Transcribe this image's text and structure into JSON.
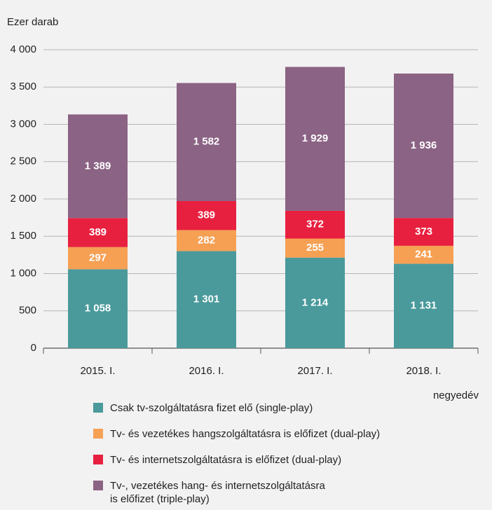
{
  "chart_data": {
    "type": "stacked_bar",
    "y_label": "Ezer darab",
    "x_label": "negyedév",
    "categories": [
      "2015. I.",
      "2016. I.",
      "2017. I.",
      "2018. I."
    ],
    "series": [
      {
        "name": "Csak tv-szolgáltatásra fizet elő (single-play)",
        "color": "#4a9a9c",
        "values": [
          1058,
          1301,
          1214,
          1131
        ],
        "value_labels": [
          "1 058",
          "1 301",
          "1 214",
          "1 131"
        ]
      },
      {
        "name": "Tv- és vezetékes hangszolgáltatásra is előfizet (dual-play)",
        "color": "#f6a054",
        "values": [
          297,
          282,
          255,
          241
        ]
      },
      {
        "name": "Tv- és internetszolgáltatásra is előfizet (dual-play)",
        "color": "#e8203f",
        "values": [
          389,
          389,
          372,
          373
        ]
      },
      {
        "name": "Tv-, vezetékes hang- és internetszolgáltatásra\nis előfizet (triple-play)",
        "color": "#8b6384",
        "values": [
          1389,
          1582,
          1929,
          1936
        ],
        "value_labels": [
          "1 389",
          "1 582",
          "1 929",
          "1 936"
        ]
      }
    ],
    "ylim": [
      0,
      4000
    ],
    "yticks": [
      0,
      500,
      {
        "value": 1000,
        "label": "1 000"
      },
      {
        "value": 1500,
        "label": "1 500"
      },
      {
        "value": 2000,
        "label": "2 000"
      },
      {
        "value": 2500,
        "label": "2 500"
      },
      {
        "value": 3000,
        "label": "3 000"
      },
      {
        "value": 3500,
        "label": "3 500"
      },
      {
        "value": 4000,
        "label": "4 000"
      }
    ],
    "grid": true
  }
}
